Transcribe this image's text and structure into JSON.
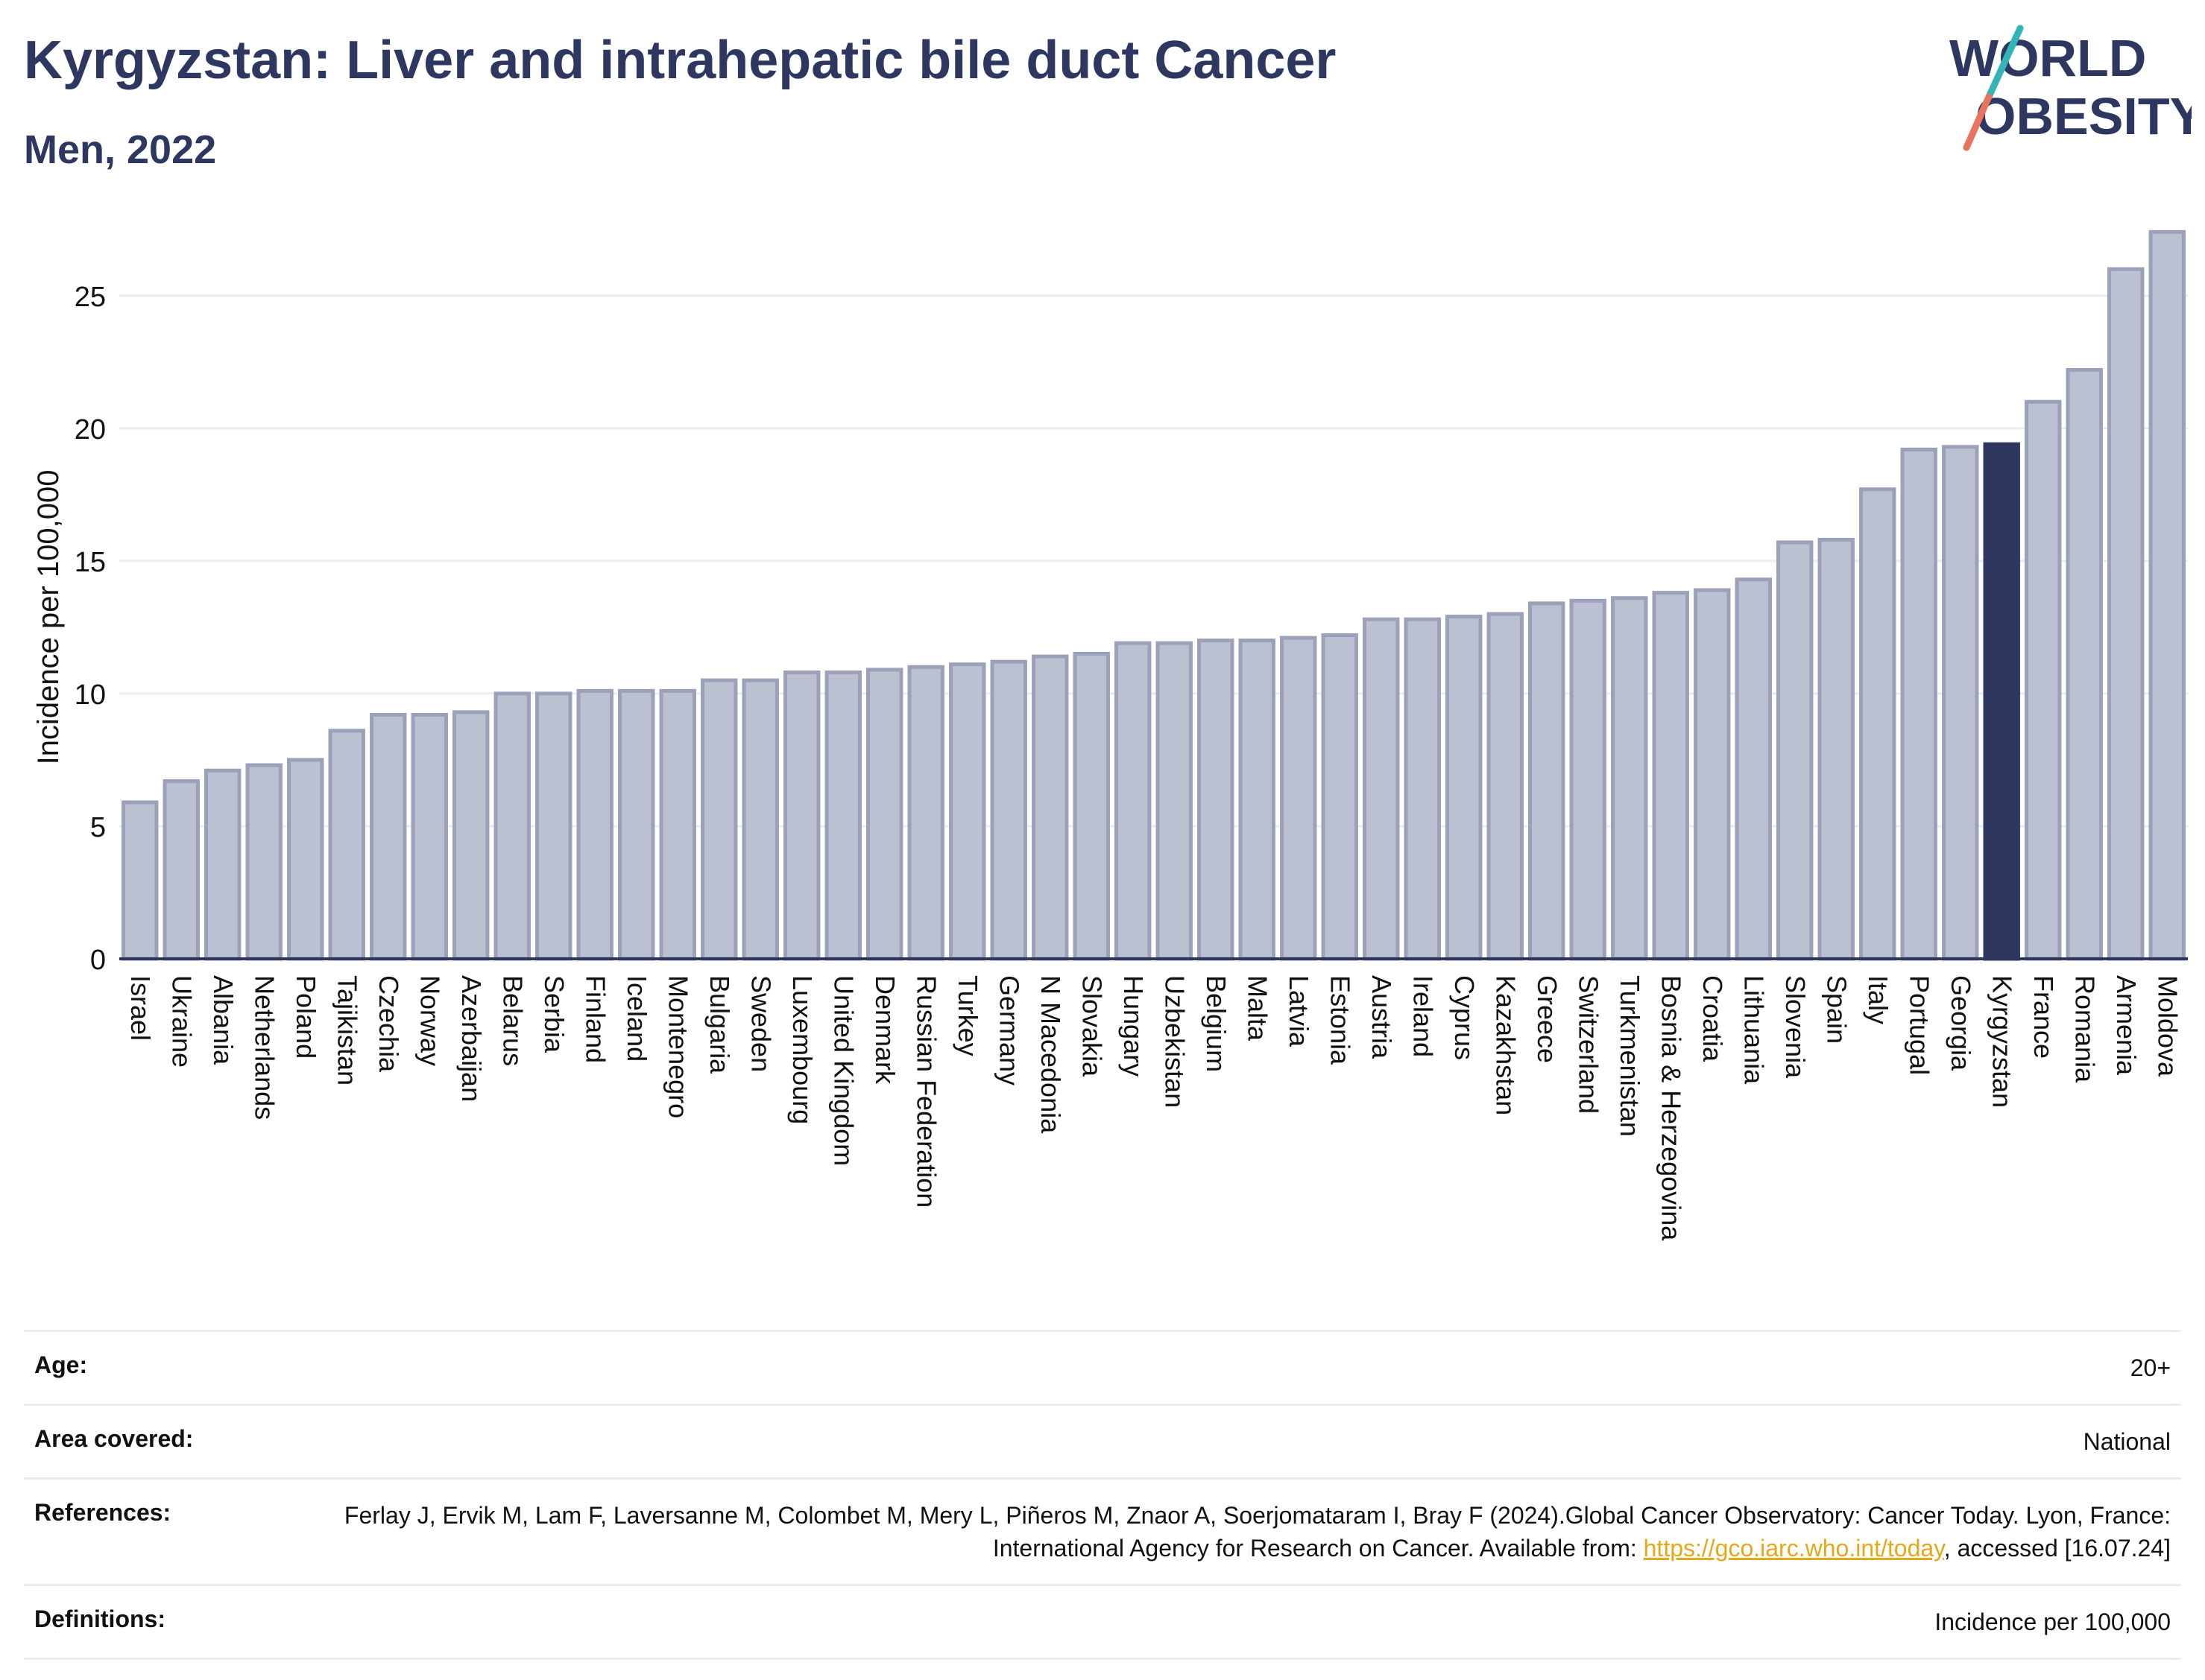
{
  "header": {
    "title": "Kyrgyzstan: Liver and intrahepatic bile duct Cancer",
    "subtitle": "Men, 2022",
    "logo_line1": "WORLD",
    "logo_line2": "OBESITY"
  },
  "colors": {
    "bar_default": "#bcc1d2",
    "bar_default_stroke": "#9aa1b8",
    "bar_highlight": "#2d3760",
    "title": "#2d3760",
    "gridline": "#e8edf2",
    "link": "#e3a81c",
    "logo_teal": "#33b5b5",
    "logo_coral": "#e8735f"
  },
  "chart_data": {
    "type": "bar",
    "ylabel": "Incidence per 100,000",
    "xlabel": "",
    "ylim": [
      0,
      28
    ],
    "yticks": [
      0,
      5,
      10,
      15,
      20,
      25
    ],
    "grid": true,
    "highlight": "Kyrgyzstan",
    "categories": [
      "Israel",
      "Ukraine",
      "Albania",
      "Netherlands",
      "Poland",
      "Tajikistan",
      "Czechia",
      "Norway",
      "Azerbaijan",
      "Belarus",
      "Serbia",
      "Finland",
      "Iceland",
      "Montenegro",
      "Bulgaria",
      "Sweden",
      "Luxembourg",
      "United Kingdom",
      "Denmark",
      "Russian Federation",
      "Turkey",
      "Germany",
      "N Macedonia",
      "Slovakia",
      "Hungary",
      "Uzbekistan",
      "Belgium",
      "Malta",
      "Latvia",
      "Estonia",
      "Austria",
      "Ireland",
      "Cyprus",
      "Kazakhstan",
      "Greece",
      "Switzerland",
      "Turkmenistan",
      "Bosnia & Herzegovina",
      "Croatia",
      "Lithuania",
      "Slovenia",
      "Spain",
      "Italy",
      "Portugal",
      "Georgia",
      "Kyrgyzstan",
      "France",
      "Romania",
      "Armenia",
      "Moldova"
    ],
    "values": [
      5.9,
      6.7,
      7.1,
      7.3,
      7.5,
      8.6,
      9.2,
      9.2,
      9.3,
      10.0,
      10.0,
      10.1,
      10.1,
      10.1,
      10.5,
      10.5,
      10.8,
      10.8,
      10.9,
      11.0,
      11.1,
      11.2,
      11.4,
      11.5,
      11.9,
      11.9,
      12.0,
      12.0,
      12.1,
      12.2,
      12.8,
      12.8,
      12.9,
      13.0,
      13.4,
      13.5,
      13.6,
      13.8,
      13.9,
      14.3,
      15.7,
      15.8,
      17.7,
      19.2,
      19.3,
      19.4,
      21.0,
      22.2,
      26.0,
      27.4
    ]
  },
  "info": {
    "age_label": "Age:",
    "age_value": "20+",
    "area_label": "Area covered:",
    "area_value": "National",
    "references_label": "References:",
    "references_text_1": "Ferlay J, Ervik M, Lam F, Laversanne M, Colombet M, Mery L, Piñeros M, Znaor A, Soerjomataram I, Bray F (2024).Global Cancer Observatory: Cancer Today. Lyon, France: International Agency for Research on Cancer. Available from: ",
    "references_link": "https://gco.iarc.who.int/today",
    "references_text_2": ", accessed [16.07.24]",
    "definitions_label": "Definitions:",
    "definitions_value": "Incidence per 100,000"
  }
}
